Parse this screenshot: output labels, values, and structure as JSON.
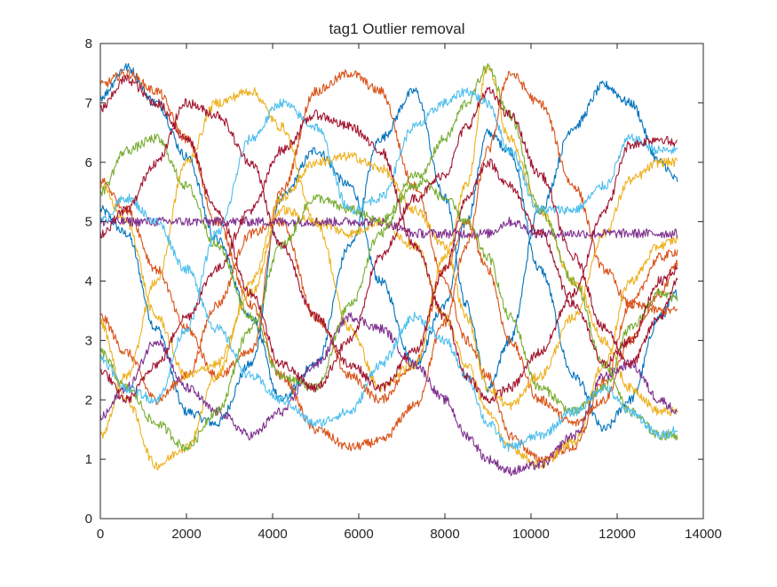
{
  "chart_data": {
    "type": "line",
    "title": "tag1 Outlier removal",
    "xlabel": "",
    "ylabel": "",
    "xlim": [
      0,
      14000
    ],
    "ylim": [
      0,
      8
    ],
    "x_ticks": [
      0,
      2000,
      4000,
      6000,
      8000,
      10000,
      12000,
      14000
    ],
    "y_ticks": [
      0,
      1,
      2,
      3,
      4,
      5,
      6,
      7,
      8
    ],
    "x_tick_labels": [
      "0",
      "2000",
      "4000",
      "6000",
      "8000",
      "10000",
      "12000",
      "14000"
    ],
    "y_tick_labels": [
      "0",
      "1",
      "2",
      "3",
      "4",
      "5",
      "6",
      "7",
      "8"
    ],
    "grid": false,
    "legend": "none",
    "x_sample": [
      0,
      600,
      1300,
      2000,
      2700,
      3500,
      4200,
      5000,
      5800,
      6500,
      7300,
      8000,
      8500,
      9000,
      9500,
      10200,
      11000,
      11700,
      12300,
      13000,
      13400
    ],
    "series": [
      {
        "color": "#0072BD",
        "values": [
          5.2,
          4.8,
          3.2,
          1.8,
          1.6,
          2.6,
          5.4,
          6.2,
          5.6,
          4.0,
          2.6,
          3.6,
          5.0,
          6.5,
          6.2,
          4.2,
          2.4,
          1.5,
          2.0,
          3.4,
          3.8
        ]
      },
      {
        "color": "#0072BD",
        "values": [
          7.1,
          7.6,
          7.0,
          6.1,
          4.7,
          3.4,
          2.0,
          2.6,
          4.6,
          6.4,
          7.2,
          5.4,
          3.6,
          2.2,
          3.0,
          5.2,
          6.6,
          7.3,
          7.0,
          6.0,
          5.7
        ]
      },
      {
        "color": "#D95319",
        "values": [
          3.4,
          2.8,
          2.0,
          2.4,
          3.6,
          4.8,
          5.0,
          3.4,
          2.4,
          2.0,
          2.6,
          4.2,
          5.0,
          4.2,
          3.0,
          2.0,
          1.6,
          2.0,
          3.0,
          3.8,
          4.3
        ]
      },
      {
        "color": "#D95319",
        "values": [
          7.3,
          7.5,
          7.2,
          6.4,
          5.0,
          3.6,
          2.4,
          1.5,
          1.2,
          1.3,
          1.9,
          3.3,
          4.6,
          6.2,
          7.5,
          7.0,
          5.6,
          4.2,
          3.6,
          3.5,
          3.5
        ]
      },
      {
        "color": "#D95319",
        "values": [
          5.7,
          5.2,
          4.2,
          3.2,
          2.4,
          2.8,
          5.5,
          7.2,
          7.5,
          7.2,
          5.6,
          4.0,
          3.0,
          2.4,
          1.4,
          1.0,
          1.2,
          2.3,
          3.6,
          4.4,
          4.5
        ]
      },
      {
        "color": "#EDB120",
        "values": [
          5.6,
          5.0,
          3.4,
          2.4,
          2.6,
          3.8,
          5.2,
          5.0,
          4.8,
          5.0,
          4.6,
          3.4,
          2.6,
          1.8,
          1.2,
          0.9,
          1.3,
          2.6,
          4.0,
          4.6,
          4.7
        ]
      },
      {
        "color": "#EDB120",
        "values": [
          3.3,
          2.0,
          0.9,
          1.2,
          2.4,
          4.0,
          5.4,
          6.0,
          6.1,
          5.9,
          5.2,
          4.6,
          3.4,
          2.2,
          1.9,
          2.4,
          3.4,
          4.8,
          5.7,
          6.0,
          6.0
        ]
      },
      {
        "color": "#EDB120",
        "values": [
          1.4,
          2.4,
          4.0,
          6.0,
          7.0,
          7.2,
          6.6,
          5.0,
          3.2,
          2.2,
          2.6,
          4.4,
          5.6,
          7.6,
          6.4,
          5.2,
          4.0,
          3.0,
          2.2,
          1.8,
          1.8
        ]
      },
      {
        "color": "#7E2F8E",
        "values": [
          1.7,
          2.2,
          3.0,
          2.2,
          1.8,
          1.4,
          1.8,
          2.6,
          3.4,
          3.2,
          2.6,
          2.0,
          1.4,
          1.0,
          0.8,
          0.9,
          1.4,
          2.4,
          2.6,
          2.0,
          1.8
        ]
      },
      {
        "color": "#7E2F8E",
        "values": [
          5.0,
          5.0,
          5.0,
          5.0,
          5.0,
          5.0,
          5.0,
          5.0,
          5.0,
          5.0,
          4.8,
          4.8,
          4.8,
          4.8,
          5.0,
          4.8,
          4.8,
          4.8,
          4.8,
          4.8,
          4.8
        ]
      },
      {
        "color": "#77AC30",
        "values": [
          5.5,
          6.2,
          6.4,
          5.6,
          4.6,
          3.4,
          2.4,
          2.2,
          3.6,
          4.8,
          5.8,
          5.4,
          5.0,
          4.4,
          3.4,
          2.2,
          1.8,
          2.2,
          3.2,
          3.8,
          3.7
        ]
      },
      {
        "color": "#77AC30",
        "values": [
          2.8,
          2.2,
          1.6,
          1.2,
          1.8,
          3.2,
          4.6,
          5.4,
          5.2,
          5.0,
          5.6,
          6.4,
          7.0,
          7.6,
          6.8,
          5.2,
          4.0,
          2.6,
          1.8,
          1.4,
          1.4
        ]
      },
      {
        "color": "#4DBEEE",
        "values": [
          5.0,
          5.4,
          5.0,
          4.2,
          3.2,
          2.4,
          2.0,
          1.6,
          1.8,
          2.6,
          3.4,
          3.0,
          2.4,
          1.6,
          1.2,
          1.4,
          1.8,
          2.2,
          1.8,
          1.4,
          1.5
        ]
      },
      {
        "color": "#4DBEEE",
        "values": [
          2.7,
          2.2,
          2.0,
          3.2,
          4.8,
          6.4,
          7.0,
          6.6,
          5.2,
          5.4,
          6.6,
          7.0,
          7.2,
          7.0,
          6.2,
          5.2,
          5.2,
          5.6,
          6.4,
          6.2,
          6.2
        ]
      },
      {
        "color": "#A2142F",
        "values": [
          6.9,
          7.4,
          7.0,
          6.4,
          5.2,
          3.8,
          2.6,
          2.2,
          3.0,
          4.4,
          5.4,
          5.8,
          6.6,
          7.2,
          6.8,
          5.8,
          4.4,
          3.2,
          2.6,
          3.4,
          4.0
        ]
      },
      {
        "color": "#A2142F",
        "values": [
          2.5,
          2.0,
          2.6,
          3.4,
          4.2,
          5.2,
          6.2,
          6.8,
          6.6,
          6.2,
          4.6,
          3.4,
          2.4,
          2.0,
          2.2,
          2.8,
          3.8,
          5.2,
          6.3,
          6.4,
          6.3
        ]
      },
      {
        "color": "#A2142F",
        "values": [
          4.8,
          5.2,
          6.0,
          7.0,
          6.8,
          6.0,
          4.6,
          3.4,
          2.6,
          2.2,
          2.8,
          4.2,
          5.4,
          6.0,
          5.6,
          4.8,
          3.6,
          2.6,
          3.0,
          4.0,
          4.2
        ]
      }
    ]
  }
}
